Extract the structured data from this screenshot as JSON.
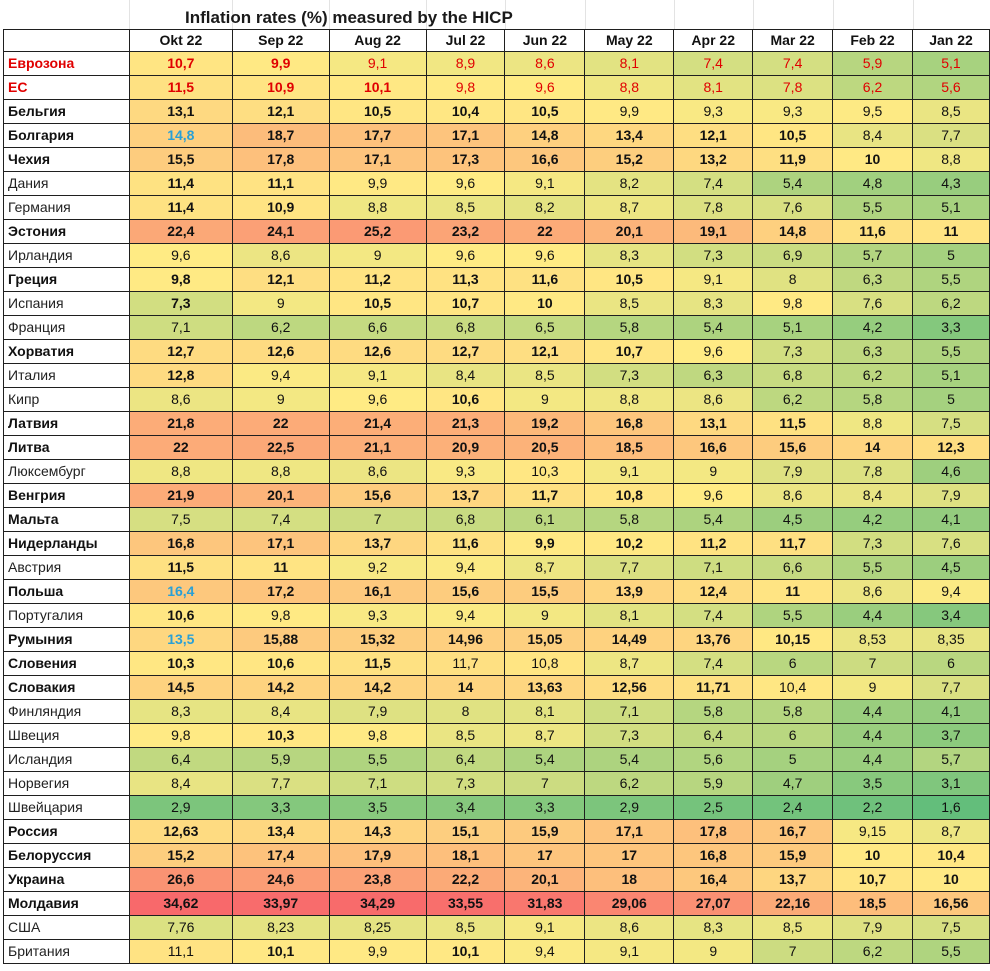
{
  "title": "Inflation rates (%) measured by the HICP",
  "columns": [
    "Okt 22",
    "Sep 22",
    "Aug 22",
    "Jul 22",
    "Jun 22",
    "May 22",
    "Apr 22",
    "Mar 22",
    "Feb 22",
    "Jan 22"
  ],
  "colors": {
    "grid_border": "#1f1f1f",
    "highlight_red": "#e00000",
    "highlight_blue": "#2aa0d6",
    "scale_low": "#63be7b",
    "scale_mid": "#ffeb84",
    "scale_high": "#f8696b"
  },
  "rows": [
    {
      "name": "Еврозона",
      "style": "red",
      "values": [
        "10,7",
        "9,9",
        "9,1",
        "8,9",
        "8,6",
        "8,1",
        "7,4",
        "7,4",
        "5,9",
        "5,1"
      ],
      "bold": [
        1,
        1,
        0,
        0,
        0,
        0,
        0,
        0,
        0,
        0
      ],
      "red": [
        1,
        1,
        1,
        1,
        1,
        1,
        1,
        1,
        1,
        1
      ]
    },
    {
      "name": "ЕС",
      "style": "red",
      "values": [
        "11,5",
        "10,9",
        "10,1",
        "9,8",
        "9,6",
        "8,8",
        "8,1",
        "7,8",
        "6,2",
        "5,6"
      ],
      "bold": [
        1,
        1,
        1,
        0,
        0,
        0,
        0,
        0,
        0,
        0
      ],
      "red": [
        1,
        1,
        1,
        1,
        1,
        1,
        1,
        1,
        1,
        1
      ]
    },
    {
      "name": "Бельгия",
      "style": "b",
      "values": [
        "13,1",
        "12,1",
        "10,5",
        "10,4",
        "10,5",
        "9,9",
        "9,3",
        "9,3",
        "9,5",
        "8,5"
      ],
      "bold": [
        1,
        1,
        1,
        1,
        1,
        0,
        0,
        0,
        0,
        0
      ]
    },
    {
      "name": "Болгария",
      "style": "b",
      "values": [
        "14,8",
        "18,7",
        "17,7",
        "17,1",
        "14,8",
        "13,4",
        "12,1",
        "10,5",
        "8,4",
        "7,7"
      ],
      "bold": [
        1,
        1,
        1,
        1,
        1,
        1,
        1,
        1,
        0,
        0
      ],
      "blue": [
        1,
        0,
        0,
        0,
        0,
        0,
        0,
        0,
        0,
        0
      ]
    },
    {
      "name": "Чехия",
      "style": "b",
      "values": [
        "15,5",
        "17,8",
        "17,1",
        "17,3",
        "16,6",
        "15,2",
        "13,2",
        "11,9",
        "10",
        "8,8"
      ],
      "bold": [
        1,
        1,
        1,
        1,
        1,
        1,
        1,
        1,
        1,
        0
      ]
    },
    {
      "name": "Дания",
      "style": "",
      "values": [
        "11,4",
        "11,1",
        "9,9",
        "9,6",
        "9,1",
        "8,2",
        "7,4",
        "5,4",
        "4,8",
        "4,3"
      ],
      "bold": [
        1,
        1,
        0,
        0,
        0,
        0,
        0,
        0,
        0,
        0
      ]
    },
    {
      "name": "Германия",
      "style": "",
      "values": [
        "11,4",
        "10,9",
        "8,8",
        "8,5",
        "8,2",
        "8,7",
        "7,8",
        "7,6",
        "5,5",
        "5,1"
      ],
      "bold": [
        1,
        1,
        0,
        0,
        0,
        0,
        0,
        0,
        0,
        0
      ]
    },
    {
      "name": "Эстония",
      "style": "b",
      "values": [
        "22,4",
        "24,1",
        "25,2",
        "23,2",
        "22",
        "20,1",
        "19,1",
        "14,8",
        "11,6",
        "11"
      ],
      "bold": [
        1,
        1,
        1,
        1,
        1,
        1,
        1,
        1,
        1,
        1
      ]
    },
    {
      "name": "Ирландия",
      "style": "",
      "values": [
        "9,6",
        "8,6",
        "9",
        "9,6",
        "9,6",
        "8,3",
        "7,3",
        "6,9",
        "5,7",
        "5"
      ],
      "bold": [
        0,
        0,
        0,
        0,
        0,
        0,
        0,
        0,
        0,
        0
      ]
    },
    {
      "name": "Греция",
      "style": "b",
      "values": [
        "9,8",
        "12,1",
        "11,2",
        "11,3",
        "11,6",
        "10,5",
        "9,1",
        "8",
        "6,3",
        "5,5"
      ],
      "bold": [
        1,
        1,
        1,
        1,
        1,
        1,
        0,
        0,
        0,
        0
      ]
    },
    {
      "name": "Испания",
      "style": "",
      "values": [
        "7,3",
        "9",
        "10,5",
        "10,7",
        "10",
        "8,5",
        "8,3",
        "9,8",
        "7,6",
        "6,2"
      ],
      "bold": [
        1,
        0,
        1,
        1,
        1,
        0,
        0,
        0,
        0,
        0
      ]
    },
    {
      "name": "Франция",
      "style": "",
      "values": [
        "7,1",
        "6,2",
        "6,6",
        "6,8",
        "6,5",
        "5,8",
        "5,4",
        "5,1",
        "4,2",
        "3,3"
      ],
      "bold": [
        0,
        0,
        0,
        0,
        0,
        0,
        0,
        0,
        0,
        0
      ]
    },
    {
      "name": "Хорватия",
      "style": "b",
      "values": [
        "12,7",
        "12,6",
        "12,6",
        "12,7",
        "12,1",
        "10,7",
        "9,6",
        "7,3",
        "6,3",
        "5,5"
      ],
      "bold": [
        1,
        1,
        1,
        1,
        1,
        1,
        0,
        0,
        0,
        0
      ]
    },
    {
      "name": "Италия",
      "style": "",
      "values": [
        "12,8",
        "9,4",
        "9,1",
        "8,4",
        "8,5",
        "7,3",
        "6,3",
        "6,8",
        "6,2",
        "5,1"
      ],
      "bold": [
        1,
        0,
        0,
        0,
        0,
        0,
        0,
        0,
        0,
        0
      ]
    },
    {
      "name": "Кипр",
      "style": "",
      "values": [
        "8,6",
        "9",
        "9,6",
        "10,6",
        "9",
        "8,8",
        "8,6",
        "6,2",
        "5,8",
        "5"
      ],
      "bold": [
        0,
        0,
        0,
        1,
        0,
        0,
        0,
        0,
        0,
        0
      ]
    },
    {
      "name": "Латвия",
      "style": "b",
      "values": [
        "21,8",
        "22",
        "21,4",
        "21,3",
        "19,2",
        "16,8",
        "13,1",
        "11,5",
        "8,8",
        "7,5"
      ],
      "bold": [
        1,
        1,
        1,
        1,
        1,
        1,
        1,
        1,
        0,
        0
      ]
    },
    {
      "name": "Литва",
      "style": "b",
      "values": [
        "22",
        "22,5",
        "21,1",
        "20,9",
        "20,5",
        "18,5",
        "16,6",
        "15,6",
        "14",
        "12,3"
      ],
      "bold": [
        1,
        1,
        1,
        1,
        1,
        1,
        1,
        1,
        1,
        1
      ]
    },
    {
      "name": "Люксембург",
      "style": "",
      "values": [
        "8,8",
        "8,8",
        "8,6",
        "9,3",
        "10,3",
        "9,1",
        "9",
        "7,9",
        "7,8",
        "4,6"
      ],
      "bold": [
        0,
        0,
        0,
        0,
        0,
        0,
        0,
        0,
        0,
        0
      ]
    },
    {
      "name": "Венгрия",
      "style": "b",
      "values": [
        "21,9",
        "20,1",
        "15,6",
        "13,7",
        "11,7",
        "10,8",
        "9,6",
        "8,6",
        "8,4",
        "7,9"
      ],
      "bold": [
        1,
        1,
        1,
        1,
        1,
        1,
        0,
        0,
        0,
        0
      ]
    },
    {
      "name": "Мальта",
      "style": "b",
      "values": [
        "7,5",
        "7,4",
        "7",
        "6,8",
        "6,1",
        "5,8",
        "5,4",
        "4,5",
        "4,2",
        "4,1"
      ],
      "bold": [
        0,
        0,
        0,
        0,
        0,
        0,
        0,
        0,
        0,
        0
      ]
    },
    {
      "name": "Нидерланды",
      "style": "b",
      "values": [
        "16,8",
        "17,1",
        "13,7",
        "11,6",
        "9,9",
        "10,2",
        "11,2",
        "11,7",
        "7,3",
        "7,6"
      ],
      "bold": [
        1,
        1,
        1,
        1,
        1,
        1,
        1,
        1,
        0,
        0
      ]
    },
    {
      "name": "Австрия",
      "style": "",
      "values": [
        "11,5",
        "11",
        "9,2",
        "9,4",
        "8,7",
        "7,7",
        "7,1",
        "6,6",
        "5,5",
        "4,5"
      ],
      "bold": [
        1,
        1,
        0,
        0,
        0,
        0,
        0,
        0,
        0,
        0
      ]
    },
    {
      "name": "Польша",
      "style": "b",
      "values": [
        "16,4",
        "17,2",
        "16,1",
        "15,6",
        "15,5",
        "13,9",
        "12,4",
        "11",
        "8,6",
        "9,4"
      ],
      "bold": [
        1,
        1,
        1,
        1,
        1,
        1,
        1,
        1,
        0,
        0
      ],
      "blue": [
        1,
        0,
        0,
        0,
        0,
        0,
        0,
        0,
        0,
        0
      ]
    },
    {
      "name": "Португалия",
      "style": "",
      "values": [
        "10,6",
        "9,8",
        "9,3",
        "9,4",
        "9",
        "8,1",
        "7,4",
        "5,5",
        "4,4",
        "3,4"
      ],
      "bold": [
        1,
        0,
        0,
        0,
        0,
        0,
        0,
        0,
        0,
        0
      ]
    },
    {
      "name": "Румыния",
      "style": "b",
      "values": [
        "13,5",
        "15,88",
        "15,32",
        "14,96",
        "15,05",
        "14,49",
        "13,76",
        "10,15",
        "8,53",
        "8,35"
      ],
      "bold": [
        1,
        1,
        1,
        1,
        1,
        1,
        1,
        1,
        0,
        0
      ],
      "blue": [
        1,
        0,
        0,
        0,
        0,
        0,
        0,
        0,
        0,
        0
      ]
    },
    {
      "name": "Словения",
      "style": "b",
      "values": [
        "10,3",
        "10,6",
        "11,5",
        "11,7",
        "10,8",
        "8,7",
        "7,4",
        "6",
        "7",
        "6"
      ],
      "bold": [
        1,
        1,
        1,
        0,
        0,
        0,
        0,
        0,
        0,
        0
      ]
    },
    {
      "name": "Словакия",
      "style": "b",
      "values": [
        "14,5",
        "14,2",
        "14,2",
        "14",
        "13,63",
        "12,56",
        "11,71",
        "10,4",
        "9",
        "7,7"
      ],
      "bold": [
        1,
        1,
        1,
        1,
        1,
        1,
        1,
        0,
        0,
        0
      ]
    },
    {
      "name": "Финляндия",
      "style": "",
      "values": [
        "8,3",
        "8,4",
        "7,9",
        "8",
        "8,1",
        "7,1",
        "5,8",
        "5,8",
        "4,4",
        "4,1"
      ],
      "bold": [
        0,
        0,
        0,
        0,
        0,
        0,
        0,
        0,
        0,
        0
      ]
    },
    {
      "name": "Швеция",
      "style": "",
      "values": [
        "9,8",
        "10,3",
        "9,8",
        "8,5",
        "8,7",
        "7,3",
        "6,4",
        "6",
        "4,4",
        "3,7"
      ],
      "bold": [
        0,
        1,
        0,
        0,
        0,
        0,
        0,
        0,
        0,
        0
      ]
    },
    {
      "name": "Исландия",
      "style": "",
      "values": [
        "6,4",
        "5,9",
        "5,5",
        "6,4",
        "5,4",
        "5,4",
        "5,6",
        "5",
        "4,4",
        "5,7"
      ],
      "bold": [
        0,
        0,
        0,
        0,
        0,
        0,
        0,
        0,
        0,
        0
      ]
    },
    {
      "name": "Норвегия",
      "style": "",
      "values": [
        "8,4",
        "7,7",
        "7,1",
        "7,3",
        "7",
        "6,2",
        "5,9",
        "4,7",
        "3,5",
        "3,1"
      ],
      "bold": [
        0,
        0,
        0,
        0,
        0,
        0,
        0,
        0,
        0,
        0
      ]
    },
    {
      "name": "Швейцария",
      "style": "",
      "values": [
        "2,9",
        "3,3",
        "3,5",
        "3,4",
        "3,3",
        "2,9",
        "2,5",
        "2,4",
        "2,2",
        "1,6"
      ],
      "bold": [
        0,
        0,
        0,
        0,
        0,
        0,
        0,
        0,
        0,
        0
      ]
    },
    {
      "name": "Россия",
      "style": "b",
      "values": [
        "12,63",
        "13,4",
        "14,3",
        "15,1",
        "15,9",
        "17,1",
        "17,8",
        "16,7",
        "9,15",
        "8,7"
      ],
      "bold": [
        1,
        1,
        1,
        1,
        1,
        1,
        1,
        1,
        0,
        0
      ]
    },
    {
      "name": "Белоруссия",
      "style": "b",
      "values": [
        "15,2",
        "17,4",
        "17,9",
        "18,1",
        "17",
        "17",
        "16,8",
        "15,9",
        "10",
        "10,4"
      ],
      "bold": [
        1,
        1,
        1,
        1,
        1,
        1,
        1,
        1,
        1,
        1
      ]
    },
    {
      "name": "Украина",
      "style": "b",
      "values": [
        "26,6",
        "24,6",
        "23,8",
        "22,2",
        "20,1",
        "18",
        "16,4",
        "13,7",
        "10,7",
        "10"
      ],
      "bold": [
        1,
        1,
        1,
        1,
        1,
        1,
        1,
        1,
        1,
        1
      ]
    },
    {
      "name": "Молдавия",
      "style": "b",
      "values": [
        "34,62",
        "33,97",
        "34,29",
        "33,55",
        "31,83",
        "29,06",
        "27,07",
        "22,16",
        "18,5",
        "16,56"
      ],
      "bold": [
        1,
        1,
        1,
        1,
        1,
        1,
        1,
        1,
        1,
        1
      ]
    },
    {
      "name": "США",
      "style": "",
      "values": [
        "7,76",
        "8,23",
        "8,25",
        "8,5",
        "9,1",
        "8,6",
        "8,3",
        "8,5",
        "7,9",
        "7,5"
      ],
      "bold": [
        0,
        0,
        0,
        0,
        0,
        0,
        0,
        0,
        0,
        0
      ]
    },
    {
      "name": "Британия",
      "style": "",
      "values": [
        "11,1",
        "10,1",
        "9,9",
        "10,1",
        "9,4",
        "9,1",
        "9",
        "7",
        "6,2",
        "5,5"
      ],
      "bold": [
        0,
        1,
        0,
        1,
        0,
        0,
        0,
        0,
        0,
        0
      ]
    }
  ]
}
